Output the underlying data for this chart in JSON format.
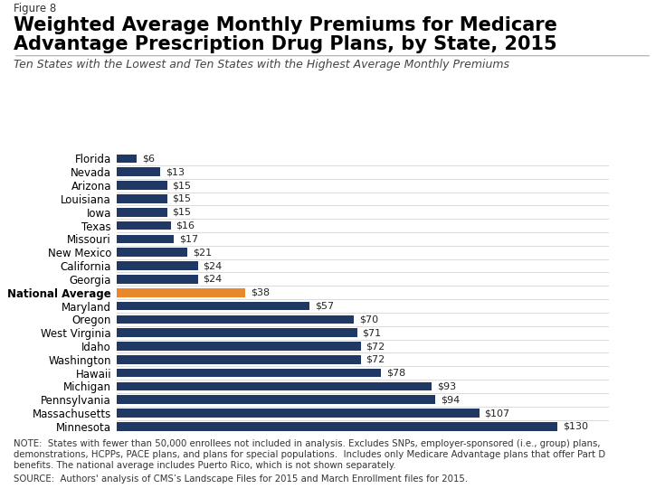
{
  "categories": [
    "Florida",
    "Nevada",
    "Arizona",
    "Louisiana",
    "Iowa",
    "Texas",
    "Missouri",
    "New Mexico",
    "California",
    "Georgia",
    "National Average",
    "Maryland",
    "Oregon",
    "West Virginia",
    "Idaho",
    "Washington",
    "Hawaii",
    "Michigan",
    "Pennsylvania",
    "Massachusetts",
    "Minnesota"
  ],
  "values": [
    6,
    13,
    15,
    15,
    15,
    16,
    17,
    21,
    24,
    24,
    38,
    57,
    70,
    71,
    72,
    72,
    78,
    93,
    94,
    107,
    130
  ],
  "bar_colors": [
    "#1F3864",
    "#1F3864",
    "#1F3864",
    "#1F3864",
    "#1F3864",
    "#1F3864",
    "#1F3864",
    "#1F3864",
    "#1F3864",
    "#1F3864",
    "#E8882A",
    "#1F3864",
    "#1F3864",
    "#1F3864",
    "#1F3864",
    "#1F3864",
    "#1F3864",
    "#1F3864",
    "#1F3864",
    "#1F3864",
    "#1F3864"
  ],
  "labels": [
    "$6",
    "$13",
    "$15",
    "$15",
    "$15",
    "$16",
    "$17",
    "$21",
    "$24",
    "$24",
    "$38",
    "$57",
    "$70",
    "$71",
    "$72",
    "$72",
    "$78",
    "$93",
    "$94",
    "$107",
    "$130"
  ],
  "figure_label": "Figure 8",
  "title_line1": "Weighted Average Monthly Premiums for Medicare",
  "title_line2": "Advantage Prescription Drug Plans, by State, 2015",
  "subtitle": "Ten States with the Lowest and Ten States with the Highest Average Monthly Premiums",
  "note_line1": "NOTE:  States with fewer than 50,000 enrollees not included in analysis. Excludes SNPs, employer-sponsored (i.e., group) plans,",
  "note_line2": "demonstrations, HCPPs, PACE plans, and plans for special populations.  Includes only Medicare Advantage plans that offer Part D",
  "note_line3": "benefits. The national average includes Puerto Rico, which is not shown separately.",
  "source_line": "SOURCE:  Authors' analysis of CMS’s Landscape Files for 2015 and March Enrollment files for 2015.",
  "bg_color": "#FFFFFF",
  "bar_dark_color": "#1F3864",
  "bar_orange_color": "#E8882A",
  "xlim": [
    0,
    145
  ]
}
